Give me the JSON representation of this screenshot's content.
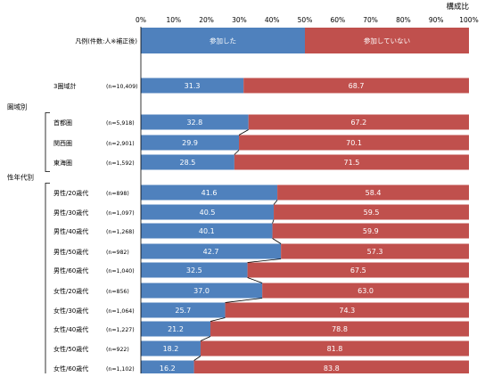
{
  "chart_data": {
    "type": "bar",
    "stacked": true,
    "orientation": "horizontal",
    "unit_label": "構成比",
    "xlim": [
      0,
      100
    ],
    "x_ticks": [
      "0%",
      "10%",
      "20%",
      "30%",
      "40%",
      "50%",
      "60%",
      "70%",
      "80%",
      "90%",
      "100%"
    ],
    "colors": {
      "participated": "#4f81bd",
      "not_participated": "#c0504d"
    },
    "legend": {
      "label": "凡例(件数:人※補正後)",
      "items": [
        {
          "name": "参加した",
          "value": 50
        },
        {
          "name": "参加していない",
          "value": 50
        }
      ]
    },
    "series": [
      {
        "name": "参加した",
        "color": "#4f81bd",
        "values": [
          31.3,
          32.8,
          29.9,
          28.5,
          41.6,
          40.5,
          40.1,
          42.7,
          32.5,
          37.0,
          25.7,
          21.2,
          18.2,
          16.2
        ]
      },
      {
        "name": "参加していない",
        "color": "#c0504d",
        "values": [
          68.7,
          67.2,
          70.1,
          71.5,
          58.4,
          59.5,
          59.9,
          57.3,
          67.5,
          63.0,
          74.3,
          78.8,
          81.8,
          83.8
        ]
      }
    ],
    "rows": [
      {
        "label": "3圏域計",
        "n": "(n=10,409)",
        "participated": "31.3",
        "not_participated": "68.7"
      },
      {
        "label": "首都圏",
        "n": "(n=5,918)",
        "participated": "32.8",
        "not_participated": "67.2"
      },
      {
        "label": "関西圏",
        "n": "(n=2,901)",
        "participated": "29.9",
        "not_participated": "70.1"
      },
      {
        "label": "東海圏",
        "n": "(n=1,592)",
        "participated": "28.5",
        "not_participated": "71.5"
      },
      {
        "label": "男性/20歳代",
        "n": "(n=898)",
        "participated": "41.6",
        "not_participated": "58.4"
      },
      {
        "label": "男性/30歳代",
        "n": "(n=1,097)",
        "participated": "40.5",
        "not_participated": "59.5"
      },
      {
        "label": "男性/40歳代",
        "n": "(n=1,268)",
        "participated": "40.1",
        "not_participated": "59.9"
      },
      {
        "label": "男性/50歳代",
        "n": "(n=982)",
        "participated": "42.7",
        "not_participated": "57.3"
      },
      {
        "label": "男性/60歳代",
        "n": "(n=1,040)",
        "participated": "32.5",
        "not_participated": "67.5"
      },
      {
        "label": "女性/20歳代",
        "n": "(n=856)",
        "participated": "37.0",
        "not_participated": "63.0"
      },
      {
        "label": "女性/30歳代",
        "n": "(n=1,064)",
        "participated": "25.7",
        "not_participated": "74.3"
      },
      {
        "label": "女性/40歳代",
        "n": "(n=1,227)",
        "participated": "21.2",
        "not_participated": "78.8"
      },
      {
        "label": "女性/50歳代",
        "n": "(n=922)",
        "participated": "18.2",
        "not_participated": "81.8"
      },
      {
        "label": "女性/60歳代",
        "n": "(n=1,102)",
        "participated": "16.2",
        "not_participated": "83.8"
      }
    ],
    "groups": [
      {
        "label": "圏域別",
        "first_row": 1,
        "last_row": 3
      },
      {
        "label": "性年代別",
        "first_row": 4,
        "last_row": 13
      }
    ]
  }
}
